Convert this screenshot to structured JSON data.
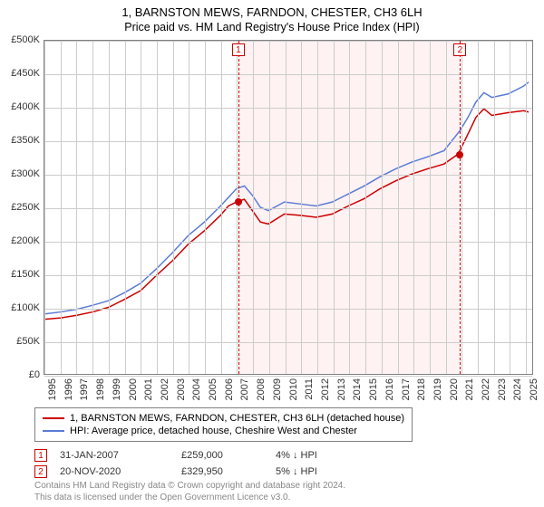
{
  "title_line1": "1, BARNSTON MEWS, FARNDON, CHESTER, CH3 6LH",
  "title_line2": "Price paid vs. HM Land Registry's House Price Index (HPI)",
  "chart": {
    "type": "line",
    "x_axis": {
      "min": 1995,
      "max": 2025.5,
      "ticks": [
        1995,
        1996,
        1997,
        1998,
        1999,
        2000,
        2001,
        2002,
        2003,
        2004,
        2005,
        2006,
        2007,
        2008,
        2009,
        2010,
        2011,
        2012,
        2013,
        2014,
        2015,
        2016,
        2017,
        2018,
        2019,
        2020,
        2021,
        2022,
        2023,
        2024,
        2025
      ],
      "tick_label_fontsize": 11,
      "tick_rotation_deg": -90
    },
    "y_axis": {
      "min": 0,
      "max": 500000,
      "ticks": [
        0,
        50000,
        100000,
        150000,
        200000,
        250000,
        300000,
        350000,
        400000,
        450000,
        500000
      ],
      "tick_labels": [
        "£0",
        "£50K",
        "£100K",
        "£150K",
        "£200K",
        "£250K",
        "£300K",
        "£350K",
        "£400K",
        "£450K",
        "£500K"
      ],
      "tick_label_fontsize": 11
    },
    "grid_color": "#cccccc",
    "border_color": "#808080",
    "background_color": "#ffffff",
    "series": [
      {
        "name": "price_paid",
        "label": "1, BARNSTON MEWS, FARNDON, CHESTER, CH3 6LH (detached house)",
        "color": "#cc0000",
        "line_width": 1.5,
        "x": [
          1995,
          1996,
          1997,
          1998,
          1999,
          2000,
          2001,
          2002,
          2003,
          2004,
          2005,
          2006,
          2006.5,
          2007.08,
          2007.5,
          2008,
          2008.5,
          2009,
          2010,
          2011,
          2012,
          2013,
          2014,
          2015,
          2016,
          2017,
          2018,
          2019,
          2020,
          2020.89,
          2021.5,
          2022,
          2022.5,
          2023,
          2024,
          2025,
          2025.3
        ],
        "y": [
          82000,
          84000,
          88000,
          93000,
          100000,
          112000,
          125000,
          148000,
          170000,
          195000,
          215000,
          238000,
          252000,
          259000,
          262000,
          245000,
          228000,
          225000,
          240000,
          238000,
          235000,
          240000,
          252000,
          263000,
          278000,
          290000,
          300000,
          308000,
          315000,
          329950,
          360000,
          385000,
          398000,
          388000,
          392000,
          395000,
          393000
        ]
      },
      {
        "name": "hpi",
        "label": "HPI: Average price, detached house, Cheshire West and Chester",
        "color": "#5b7bd5",
        "line_width": 1.5,
        "x": [
          1995,
          1996,
          1997,
          1998,
          1999,
          2000,
          2001,
          2002,
          2003,
          2004,
          2005,
          2006,
          2007,
          2007.5,
          2008,
          2008.5,
          2009,
          2010,
          2011,
          2012,
          2013,
          2014,
          2015,
          2016,
          2017,
          2018,
          2019,
          2020,
          2021,
          2021.5,
          2022,
          2022.5,
          2023,
          2024,
          2025,
          2025.3
        ],
        "y": [
          90000,
          93000,
          97000,
          103000,
          110000,
          122000,
          136000,
          158000,
          182000,
          208000,
          228000,
          252000,
          278000,
          282000,
          268000,
          250000,
          245000,
          258000,
          255000,
          252000,
          258000,
          270000,
          282000,
          296000,
          308000,
          318000,
          326000,
          335000,
          365000,
          385000,
          408000,
          422000,
          415000,
          420000,
          432000,
          438000
        ]
      }
    ],
    "markers": [
      {
        "id": "1",
        "x": 2007.08,
        "y": 259000,
        "dashed_line": true
      },
      {
        "id": "2",
        "x": 2020.89,
        "y": 329950,
        "dashed_line": true
      }
    ],
    "shaded_range": {
      "x0": 2007.08,
      "x1": 2020.89,
      "fill": "rgba(255,0,0,0.05)"
    }
  },
  "legend": {
    "border_color": "#808080",
    "items": [
      {
        "color": "#cc0000",
        "label": "1, BARNSTON MEWS, FARNDON, CHESTER, CH3 6LH (detached house)"
      },
      {
        "color": "#5b7bd5",
        "label": "HPI: Average price, detached house, Cheshire West and Chester"
      }
    ]
  },
  "transactions": [
    {
      "id": "1",
      "date": "31-JAN-2007",
      "price": "£259,000",
      "pct": "4% ↓ HPI"
    },
    {
      "id": "2",
      "date": "20-NOV-2020",
      "price": "£329,950",
      "pct": "5% ↓ HPI"
    }
  ],
  "footer_line1": "Contains HM Land Registry data © Crown copyright and database right 2024.",
  "footer_line2": "This data is licensed under the Open Government Licence v3.0.",
  "colors": {
    "marker_border": "#cc0000",
    "dashed_line": "#cc0000",
    "footer_text": "#888888"
  }
}
